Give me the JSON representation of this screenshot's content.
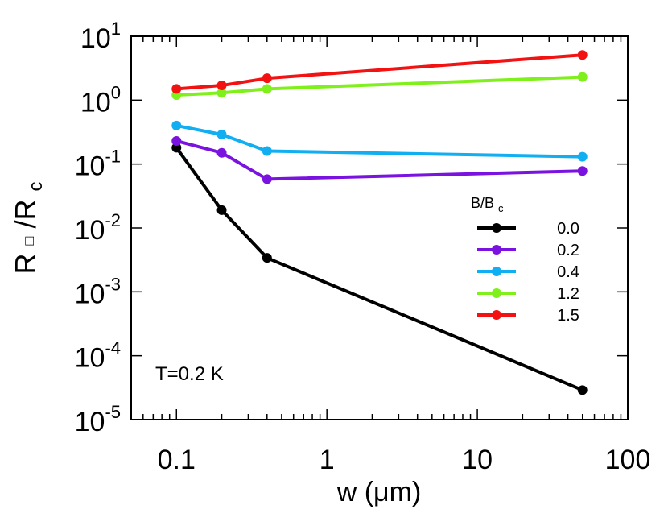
{
  "chart_data": {
    "type": "line",
    "xscale": "log",
    "yscale": "log",
    "xlim": [
      0.05,
      100
    ],
    "ylim": [
      1e-05,
      10
    ],
    "xlabel": "w (μm)",
    "ylabel": {
      "main": "R",
      "square": "□",
      "slash": "/R",
      "sub": "c"
    },
    "x_ticks": [
      "0.1",
      "1",
      "10",
      "100"
    ],
    "y_ticks": [
      {
        "base": "10",
        "exp": "1"
      },
      {
        "base": "10",
        "exp": "0"
      },
      {
        "base": "10",
        "exp": "-1"
      },
      {
        "base": "10",
        "exp": "-2"
      },
      {
        "base": "10",
        "exp": "-3"
      },
      {
        "base": "10",
        "exp": "-4"
      },
      {
        "base": "10",
        "exp": "-5"
      }
    ],
    "annotation": "T=0.2 K",
    "legend": {
      "title_main": "B/B",
      "title_sub": "c",
      "position": "right"
    },
    "x": [
      0.1,
      0.2,
      0.4,
      50
    ],
    "series": [
      {
        "name": "0.0",
        "color": "#000000",
        "values": [
          0.18,
          0.019,
          0.0034,
          2.9e-05
        ]
      },
      {
        "name": "0.2",
        "color": "#7a12e0",
        "values": [
          0.23,
          0.15,
          0.058,
          0.078
        ]
      },
      {
        "name": "0.4",
        "color": "#12aef2",
        "values": [
          0.4,
          0.29,
          0.16,
          0.13
        ]
      },
      {
        "name": "1.2",
        "color": "#80f01c",
        "values": [
          1.2,
          1.3,
          1.5,
          2.3
        ]
      },
      {
        "name": "1.5",
        "color": "#f21212",
        "values": [
          1.5,
          1.7,
          2.2,
          5.1
        ]
      }
    ]
  }
}
